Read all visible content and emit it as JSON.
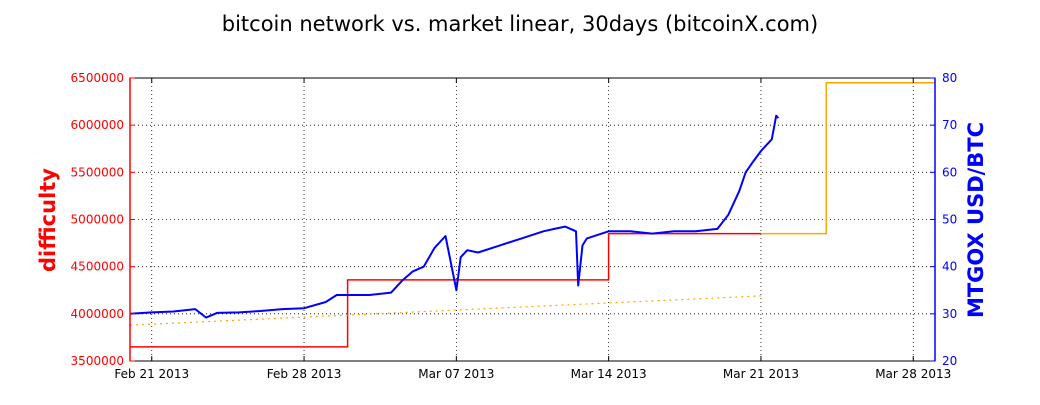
{
  "chart_data": {
    "type": "line",
    "title": "bitcoin network vs. market linear, 30days (bitcoinX.com)",
    "ylabel_left": "difficulty",
    "ylabel_right": "MTGOX USD/BTC",
    "xlabel": "",
    "x_ticks": [
      "Feb 21 2013",
      "Feb 28 2013",
      "Mar 07 2013",
      "Mar 14 2013",
      "Mar 21 2013",
      "Mar 28 2013"
    ],
    "y_left_ticks": [
      "3500000",
      "4000000",
      "4500000",
      "5000000",
      "5500000",
      "6000000",
      "6500000"
    ],
    "y_right_ticks": [
      "20",
      "30",
      "40",
      "50",
      "60",
      "70",
      "80"
    ],
    "xlim": [
      "2013-02-20",
      "2013-03-29"
    ],
    "ylim_left": [
      3500000,
      6500000
    ],
    "ylim_right": [
      20,
      80
    ],
    "grid": true,
    "colors": {
      "difficulty": "#ff0000",
      "projected_difficulty": "#ffa500",
      "trend": "#ffa500",
      "price": "#0000ff",
      "left_axis": "#ff0000",
      "right_axis": "#0000ff"
    },
    "series": [
      {
        "axis": "left",
        "style": "step",
        "x": [
          "2013-02-20",
          "2013-03-02",
          "2013-03-02",
          "2013-03-14",
          "2013-03-14",
          "2013-03-21"
        ],
        "values": [
          3650000,
          3650000,
          4360000,
          4360000,
          4850000,
          4850000
        ]
      },
      {
        "axis": "left",
        "style": "step",
        "x": [
          "2013-03-21",
          "2013-03-24",
          "2013-03-24",
          "2013-03-29"
        ],
        "values": [
          4850000,
          4850000,
          6450000,
          6450000
        ]
      },
      {
        "axis": "left",
        "style": "dotted",
        "x": [
          "2013-02-20",
          "2013-03-21"
        ],
        "values": [
          3880000,
          4190000
        ]
      },
      {
        "axis": "right",
        "style": "line",
        "x": [
          "2013-02-20",
          "2013-02-21",
          "2013-02-22",
          "2013-02-23",
          "2013-02-23.5",
          "2013-02-24",
          "2013-02-25",
          "2013-02-26",
          "2013-02-27",
          "2013-02-28",
          "2013-03-01",
          "2013-03-01.5",
          "2013-03-02",
          "2013-03-03",
          "2013-03-04",
          "2013-03-04.5",
          "2013-03-05",
          "2013-03-05.5",
          "2013-03-06",
          "2013-03-06.5",
          "2013-03-07",
          "2013-03-07.2",
          "2013-03-07.5",
          "2013-03-08",
          "2013-03-09",
          "2013-03-10",
          "2013-03-11",
          "2013-03-11.5",
          "2013-03-12",
          "2013-03-12.5",
          "2013-03-12.6",
          "2013-03-12.8",
          "2013-03-13",
          "2013-03-14",
          "2013-03-15",
          "2013-03-16",
          "2013-03-17",
          "2013-03-18",
          "2013-03-19",
          "2013-03-19.5",
          "2013-03-20",
          "2013-03-20.3",
          "2013-03-20.6",
          "2013-03-21",
          "2013-03-21.5",
          "2013-03-21.7",
          "2013-03-21.8"
        ],
        "values": [
          30.0,
          30.3,
          30.5,
          31.0,
          29.2,
          30.2,
          30.3,
          30.6,
          31.0,
          31.2,
          32.5,
          34.0,
          34.0,
          34.0,
          34.5,
          37.0,
          39.0,
          40.0,
          44.0,
          46.5,
          35.0,
          42.0,
          43.5,
          43.0,
          44.5,
          46.0,
          47.5,
          48.0,
          48.5,
          47.5,
          36.0,
          44.5,
          46.0,
          47.5,
          47.5,
          47.0,
          47.5,
          47.5,
          48.0,
          51.0,
          56.0,
          60.0,
          62.0,
          64.5,
          67.0,
          72.0,
          71.5
        ]
      }
    ]
  }
}
